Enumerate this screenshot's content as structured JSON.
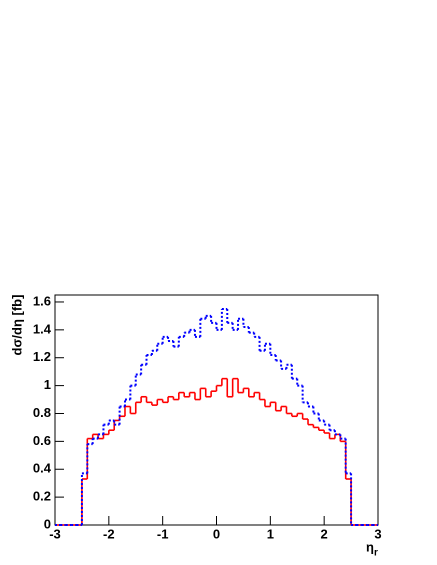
{
  "chart_data": {
    "type": "histogram",
    "x_label": "η",
    "x_label_sub": "r",
    "y_label": "dσ/dη [fb]",
    "bins": [
      -3,
      -2.9,
      -2.8,
      -2.7,
      -2.6,
      -2.5,
      -2.4,
      -2.3,
      -2.2,
      -2.1,
      -2,
      -1.9,
      -1.8,
      -1.7,
      -1.6,
      -1.5,
      -1.4,
      -1.3,
      -1.2,
      -1.1,
      -1,
      -0.9,
      -0.8,
      -0.7,
      -0.6,
      -0.5,
      -0.4,
      -0.3,
      -0.2,
      -0.1,
      0,
      0.1,
      0.2,
      0.3,
      0.4,
      0.5,
      0.6,
      0.7,
      0.8,
      0.9,
      1,
      1.1,
      1.2,
      1.3,
      1.4,
      1.5,
      1.6,
      1.7,
      1.8,
      1.9,
      2,
      2.1,
      2.2,
      2.3,
      2.4,
      2.5,
      2.6,
      2.7,
      2.8,
      2.9,
      3
    ],
    "series": [
      {
        "color": "#ff0000",
        "style": "solid",
        "values": [
          0,
          0,
          0,
          0,
          0,
          0.33,
          0.62,
          0.65,
          0.62,
          0.65,
          0.68,
          0.75,
          0.78,
          0.85,
          0.8,
          0.88,
          0.92,
          0.88,
          0.86,
          0.9,
          0.88,
          0.92,
          0.9,
          0.95,
          0.92,
          0.95,
          0.9,
          0.98,
          0.92,
          0.96,
          1.0,
          1.05,
          0.92,
          1.05,
          0.95,
          0.98,
          0.92,
          0.95,
          0.9,
          0.85,
          0.88,
          0.82,
          0.85,
          0.8,
          0.78,
          0.8,
          0.76,
          0.72,
          0.7,
          0.68,
          0.66,
          0.62,
          0.65,
          0.6,
          0.33,
          0,
          0,
          0,
          0,
          0
        ]
      },
      {
        "color": "#0000ff",
        "style": "dotted",
        "values": [
          0,
          0,
          0,
          0,
          0,
          0.37,
          0.58,
          0.62,
          0.65,
          0.72,
          0.75,
          0.72,
          0.85,
          0.9,
          1.0,
          1.08,
          1.15,
          1.22,
          1.25,
          1.3,
          1.35,
          1.32,
          1.28,
          1.35,
          1.38,
          1.4,
          1.35,
          1.48,
          1.5,
          1.45,
          1.4,
          1.55,
          1.45,
          1.4,
          1.48,
          1.42,
          1.38,
          1.35,
          1.25,
          1.3,
          1.22,
          1.18,
          1.12,
          1.15,
          1.05,
          1.0,
          0.88,
          0.85,
          0.8,
          0.75,
          0.72,
          0.68,
          0.65,
          0.62,
          0.37,
          0,
          0,
          0,
          0,
          0
        ]
      }
    ],
    "xlim": [
      -3,
      3
    ],
    "xticks": [
      -3,
      -2,
      -1,
      0,
      1,
      2,
      3
    ],
    "ylim": [
      0,
      1.65
    ],
    "yticks": [
      0,
      0.2,
      0.4,
      0.6,
      0.8,
      1,
      1.2,
      1.4,
      1.6
    ]
  }
}
